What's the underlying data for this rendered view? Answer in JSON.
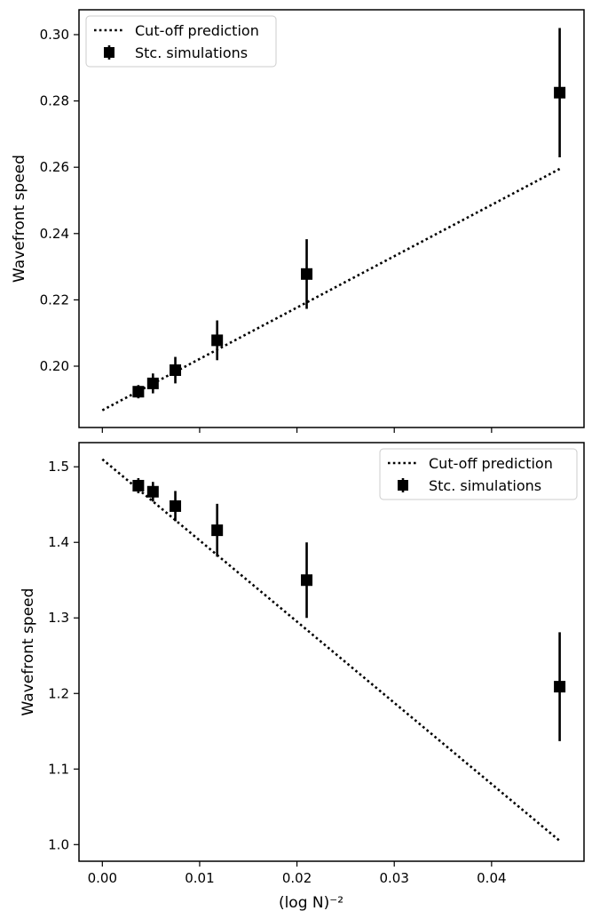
{
  "chart_data": [
    {
      "type": "scatter",
      "title": "",
      "xlabel": "",
      "ylabel": "Wavefront speed",
      "xlim": [
        -0.0024,
        0.0495
      ],
      "ylim": [
        0.1815,
        0.3075
      ],
      "xticks": [
        0.0,
        0.01,
        0.02,
        0.03,
        0.04
      ],
      "xticklabels": [],
      "yticks": [
        0.2,
        0.22,
        0.24,
        0.26,
        0.28,
        0.3
      ],
      "yticklabels": [
        "0.20",
        "0.22",
        "0.24",
        "0.26",
        "0.28",
        "0.30"
      ],
      "grid": false,
      "legend_position": "top-left",
      "series": [
        {
          "name": "Cut-off prediction",
          "kind": "line",
          "style": "dotted",
          "color": "#000000",
          "x": [
            0.0,
            0.047
          ],
          "y": [
            0.1867,
            0.2595
          ]
        },
        {
          "name": "Stc. simulations",
          "kind": "errorbar",
          "marker": "square",
          "color": "#000000",
          "x": [
            0.0037,
            0.0052,
            0.0075,
            0.0118,
            0.021,
            0.047
          ],
          "y": [
            0.1923,
            0.1948,
            0.1988,
            0.2078,
            0.2278,
            0.2825
          ],
          "yerr": [
            0.002,
            0.003,
            0.004,
            0.006,
            0.0105,
            0.0195
          ]
        }
      ]
    },
    {
      "type": "scatter",
      "title": "",
      "xlabel": "(log N)⁻²",
      "ylabel": "Wavefront speed",
      "xlim": [
        -0.0024,
        0.0495
      ],
      "ylim": [
        0.978,
        1.532
      ],
      "xticks": [
        0.0,
        0.01,
        0.02,
        0.03,
        0.04
      ],
      "xticklabels": [
        "0.00",
        "0.01",
        "0.02",
        "0.03",
        "0.04"
      ],
      "yticks": [
        1.0,
        1.1,
        1.2,
        1.3,
        1.4,
        1.5
      ],
      "yticklabels": [
        "1.0",
        "1.1",
        "1.2",
        "1.3",
        "1.4",
        "1.5"
      ],
      "grid": false,
      "legend_position": "top-right",
      "series": [
        {
          "name": "Cut-off prediction",
          "kind": "line",
          "style": "dotted",
          "color": "#000000",
          "x": [
            0.0,
            0.047
          ],
          "y": [
            1.51,
            1.005
          ]
        },
        {
          "name": "Stc. simulations",
          "kind": "errorbar",
          "marker": "square",
          "color": "#000000",
          "x": [
            0.0037,
            0.0052,
            0.0075,
            0.0118,
            0.021,
            0.047
          ],
          "y": [
            1.475,
            1.467,
            1.448,
            1.416,
            1.35,
            1.209
          ],
          "yerr": [
            0.01,
            0.013,
            0.02,
            0.035,
            0.05,
            0.072
          ]
        }
      ]
    }
  ]
}
